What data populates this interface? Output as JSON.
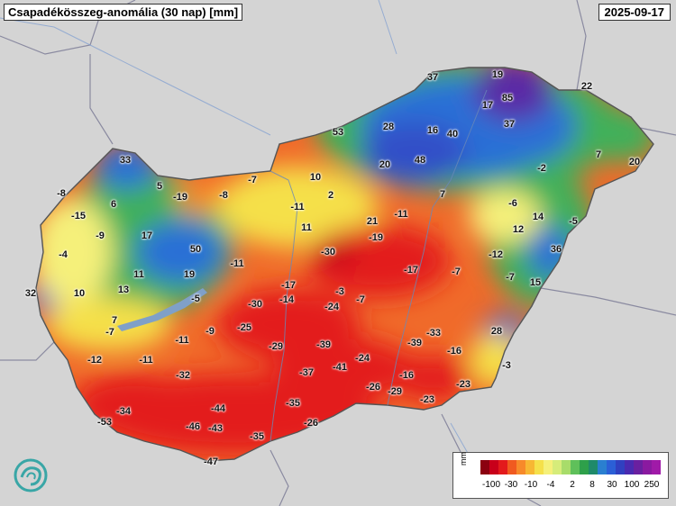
{
  "header": {
    "title": "Csapadékösszeg-anomália (30 nap) [mm]",
    "date": "2025-09-17"
  },
  "colors": {
    "background": "#d8d8d8",
    "strong_negative": "#e31a1c",
    "negative": "#f06a2a",
    "slight_negative": "#f7b733",
    "near_zero": "#f5f07a",
    "slight_positive": "#b8e07a",
    "positive": "#3fb05a",
    "strong_positive": "#2b6fd6",
    "very_strong_positive": "#5a2ba6",
    "lake": "#7fa0c8"
  },
  "stations": [
    {
      "value": "-8"
    },
    {
      "value": "33"
    },
    {
      "value": "5"
    },
    {
      "value": "-19"
    },
    {
      "value": "-8"
    },
    {
      "value": "-7"
    },
    {
      "value": "10"
    },
    {
      "value": "53"
    },
    {
      "value": "28"
    },
    {
      "value": "37"
    },
    {
      "value": "19"
    },
    {
      "value": "85"
    },
    {
      "value": "17"
    },
    {
      "value": "37"
    },
    {
      "value": "22"
    },
    {
      "value": "16"
    },
    {
      "value": "40"
    },
    {
      "value": "20"
    },
    {
      "value": "48"
    },
    {
      "value": "-15"
    },
    {
      "value": "6"
    },
    {
      "value": "-9"
    },
    {
      "value": "17"
    },
    {
      "value": "-4"
    },
    {
      "value": "50"
    },
    {
      "value": "11"
    },
    {
      "value": "19"
    },
    {
      "value": "-11"
    },
    {
      "value": "2"
    },
    {
      "value": "-11"
    },
    {
      "value": "11"
    },
    {
      "value": "21"
    },
    {
      "value": "-11"
    },
    {
      "value": "7"
    },
    {
      "value": "-2"
    },
    {
      "value": "7"
    },
    {
      "value": "20"
    },
    {
      "value": "-6"
    },
    {
      "value": "14"
    },
    {
      "value": "-5"
    },
    {
      "value": "12"
    },
    {
      "value": "36"
    },
    {
      "value": "32"
    },
    {
      "value": "10"
    },
    {
      "value": "13"
    },
    {
      "value": "-11"
    },
    {
      "value": "-30"
    },
    {
      "value": "-19"
    },
    {
      "value": "-17"
    },
    {
      "value": "-7"
    },
    {
      "value": "-12"
    },
    {
      "value": "-7"
    },
    {
      "value": "15"
    },
    {
      "value": "-5"
    },
    {
      "value": "-17"
    },
    {
      "value": "-3"
    },
    {
      "value": "-7"
    },
    {
      "value": "-30"
    },
    {
      "value": "-14"
    },
    {
      "value": "-24"
    },
    {
      "value": "7"
    },
    {
      "value": "-7"
    },
    {
      "value": "-9"
    },
    {
      "value": "-25"
    },
    {
      "value": "-11"
    },
    {
      "value": "-29"
    },
    {
      "value": "-39"
    },
    {
      "value": "-39"
    },
    {
      "value": "-33"
    },
    {
      "value": "28"
    },
    {
      "value": "-16"
    },
    {
      "value": "-12"
    },
    {
      "value": "-32"
    },
    {
      "value": "-37"
    },
    {
      "value": "-41"
    },
    {
      "value": "-24"
    },
    {
      "value": "-16"
    },
    {
      "value": "-3"
    },
    {
      "value": "-26"
    },
    {
      "value": "-29"
    },
    {
      "value": "-23"
    },
    {
      "value": "-23"
    },
    {
      "value": "-44"
    },
    {
      "value": "-35"
    },
    {
      "value": "-34"
    },
    {
      "value": "-53"
    },
    {
      "value": "-46"
    },
    {
      "value": "-43"
    },
    {
      "value": "-26"
    },
    {
      "value": "-35"
    },
    {
      "value": "-47"
    }
  ],
  "legend": {
    "unit": "mm",
    "labels": [
      "-100",
      "-30",
      "-10",
      "-4",
      "2",
      "8",
      "30",
      "100",
      "250"
    ],
    "swatches": [
      "#8b0010",
      "#c8001a",
      "#e31a1c",
      "#f05a20",
      "#f78a2a",
      "#f7b733",
      "#f5e04a",
      "#f5f07a",
      "#d6ec7a",
      "#a8dc6a",
      "#5fc05a",
      "#2ea04a",
      "#1f8a6a",
      "#2a7fd0",
      "#2b5fd6",
      "#3040c0",
      "#4a2ab0",
      "#6a20a0",
      "#8a1aa0",
      "#a01aa8"
    ]
  }
}
